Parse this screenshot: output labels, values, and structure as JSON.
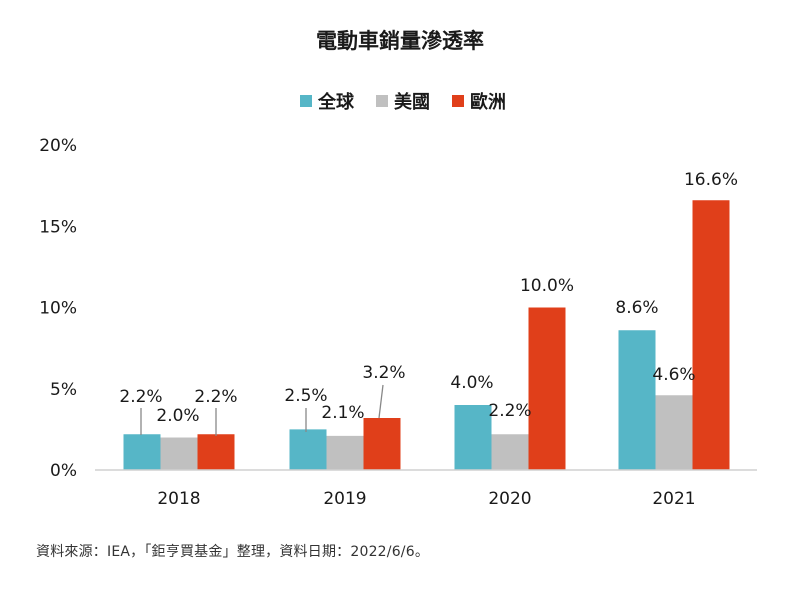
{
  "chart_data": {
    "type": "bar",
    "title": "電動車銷量滲透率",
    "categories": [
      "2018",
      "2019",
      "2020",
      "2021"
    ],
    "series": [
      {
        "name": "全球",
        "color": "#56b6c7",
        "values": [
          2.2,
          2.5,
          4.0,
          8.6
        ]
      },
      {
        "name": "美國",
        "color": "#c0c0c0",
        "values": [
          2.0,
          2.1,
          2.2,
          4.6
        ]
      },
      {
        "name": "歐洲",
        "color": "#e03f1a",
        "values": [
          2.2,
          3.2,
          10.0,
          16.6
        ]
      }
    ],
    "data_labels": [
      [
        "2.2%",
        "2.5%",
        "4.0%",
        "8.6%"
      ],
      [
        "2.0%",
        "2.1%",
        "2.2%",
        "4.6%"
      ],
      [
        "2.2%",
        "3.2%",
        "10.0%",
        "16.6%"
      ]
    ],
    "ylim": [
      0,
      20
    ],
    "yticks": [
      "0%",
      "5%",
      "10%",
      "15%",
      "20%"
    ],
    "grid": false,
    "legend_position": "top-center"
  },
  "source_note": "資料來源：IEA，「鉅亨買基金」整理，資料日期：2022/6/6。"
}
